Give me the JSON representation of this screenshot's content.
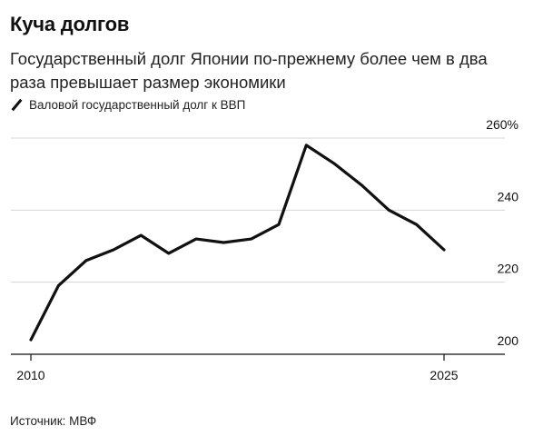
{
  "title": "Куча долгов",
  "subtitle": "Государственный долг Японии по-прежнему более чем в два раза превышает размер экономики",
  "legend": "Валовой государственный долг к ВВП",
  "source": "Источник: МВФ",
  "colors": {
    "line": "#111111",
    "grid": "#d4d4d4",
    "axis": "#111111"
  },
  "chart_data": {
    "type": "line",
    "x": [
      2010,
      2011,
      2012,
      2013,
      2014,
      2015,
      2016,
      2017,
      2018,
      2019,
      2020,
      2021,
      2022,
      2023,
      2024,
      2025
    ],
    "series": [
      {
        "values": [
          204,
          219,
          226,
          229,
          233,
          228,
          232,
          231,
          232,
          236,
          258,
          253,
          247,
          240,
          236,
          229
        ]
      }
    ],
    "x_ticks": [
      2010,
      2025
    ],
    "x_tick_labels": [
      "2010",
      "2025"
    ],
    "y_ticks": [
      200,
      220,
      240,
      260
    ],
    "y_tick_labels": [
      "200",
      "220",
      "240",
      "260%"
    ],
    "ylim": [
      200,
      260
    ],
    "xlim": [
      2010,
      2025
    ],
    "grid": "horizontal",
    "y_axis_position": "right"
  }
}
